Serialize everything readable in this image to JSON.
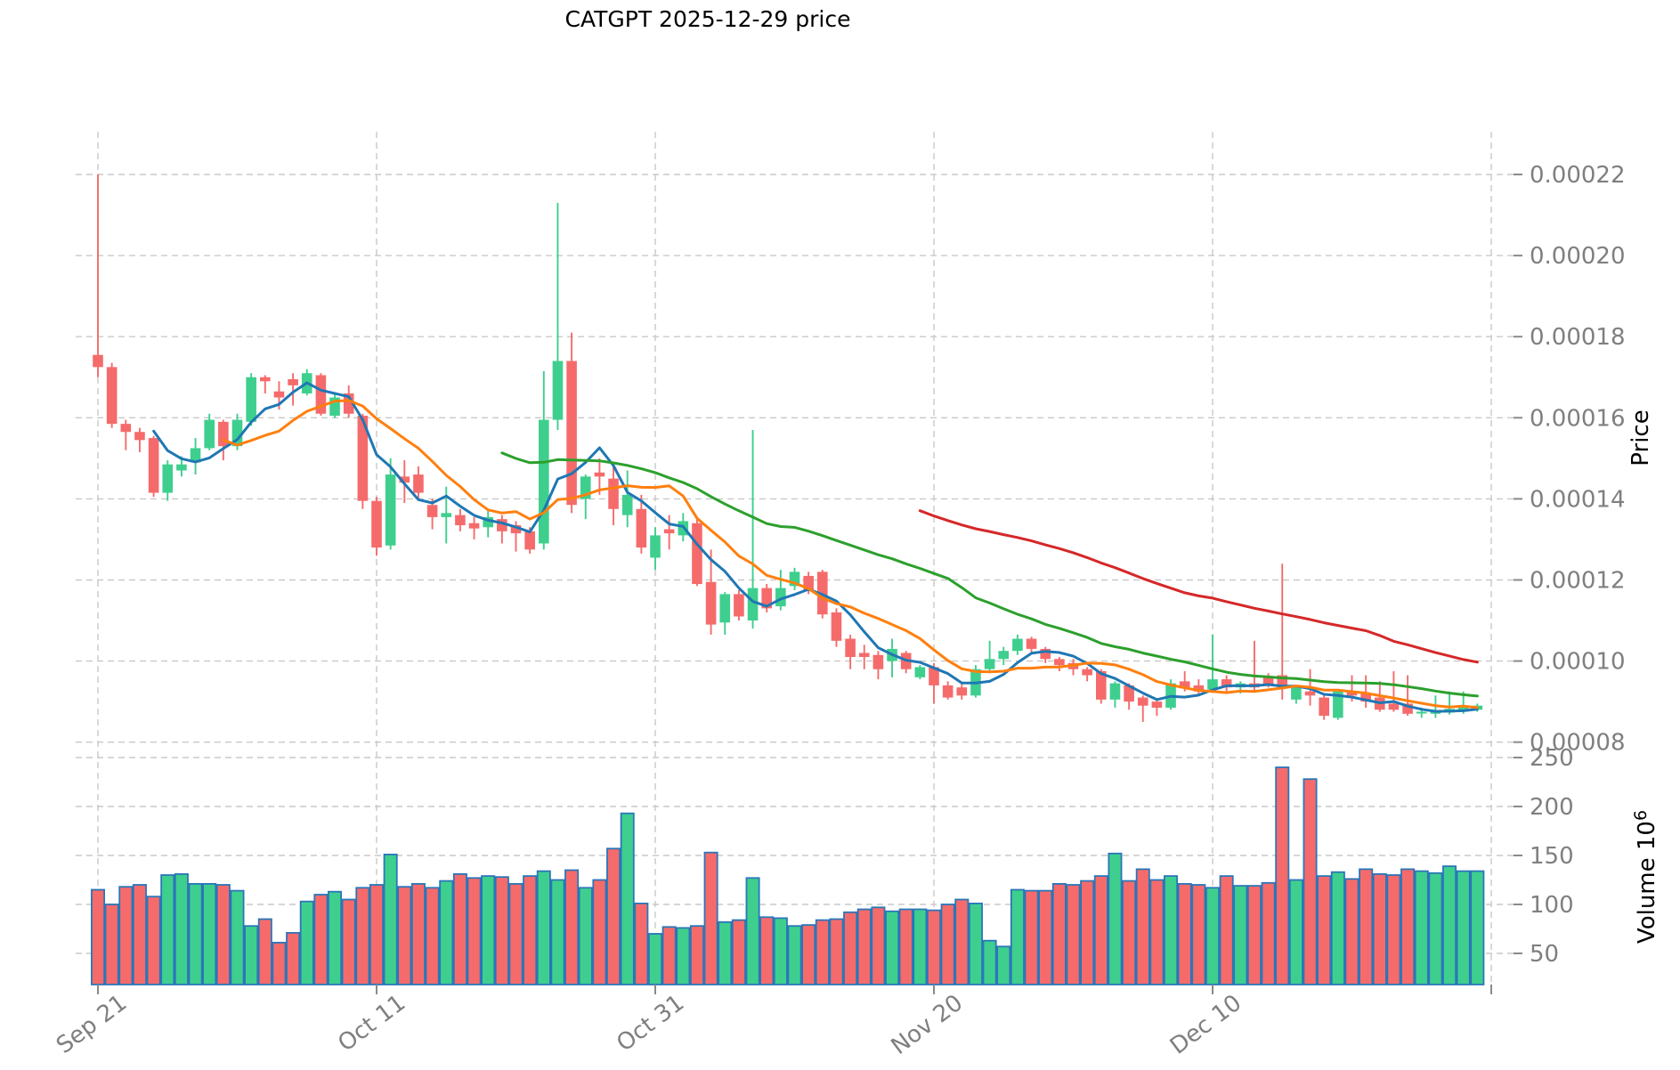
{
  "title": "CATGPT  2025-12-29  price",
  "chart_data": {
    "type": "candlestick",
    "title": "CATGPT  2025-12-29  price",
    "x_axis": {
      "tick_labels": [
        {
          "index": 0,
          "label": "Sep 21"
        },
        {
          "index": 20,
          "label": "Oct 11"
        },
        {
          "index": 40,
          "label": "Oct 31"
        },
        {
          "index": 60,
          "label": "Nov 20"
        },
        {
          "index": 80,
          "label": "Dec 10"
        },
        {
          "index": 100,
          "label": ""
        }
      ],
      "num_days": 100
    },
    "price_axis": {
      "label": "Price",
      "ticks": [
        "0.00022",
        "0.00020",
        "0.00018",
        "0.00016",
        "0.00014",
        "0.00012",
        "0.00010",
        "0.00008"
      ],
      "tick_values_micro": [
        220,
        200,
        180,
        160,
        140,
        120,
        100,
        80
      ],
      "ylim_micro": [
        78.4,
        230.5
      ]
    },
    "volume_axis": {
      "label": "Volume",
      "unit_base": "10",
      "unit_exponent": "6",
      "ticks": [
        "250",
        "200",
        "150",
        "100",
        "50"
      ],
      "tick_values": [
        250,
        200,
        150,
        100,
        50
      ],
      "ylim": [
        18,
        255
      ]
    },
    "price_scale": 1e-06,
    "volume_scale": 1000000.0,
    "ohlc_micro": [
      [
        175.5,
        220,
        170,
        172.5
      ],
      [
        172.5,
        173.5,
        157.5,
        158.5
      ],
      [
        158.5,
        159.5,
        152,
        156.5
      ],
      [
        156.5,
        157.5,
        151.5,
        154.5
      ],
      [
        155,
        155.5,
        140.5,
        141.5
      ],
      [
        141.5,
        149.5,
        139.5,
        148.5
      ],
      [
        147,
        150.5,
        145.5,
        148.5
      ],
      [
        149,
        155,
        146,
        152.5
      ],
      [
        152.5,
        161,
        152,
        159.5
      ],
      [
        159,
        159.5,
        149.5,
        153
      ],
      [
        153,
        161,
        152,
        159.5
      ],
      [
        159,
        171,
        158,
        170
      ],
      [
        170,
        170.5,
        166,
        169
      ],
      [
        166.5,
        169,
        162,
        165
      ],
      [
        169.5,
        171,
        163,
        168
      ],
      [
        166,
        172,
        165.5,
        171
      ],
      [
        170.5,
        171,
        160.5,
        161
      ],
      [
        160.5,
        166,
        160,
        165
      ],
      [
        166,
        168,
        160,
        161
      ],
      [
        160.5,
        161,
        137.5,
        139.5
      ],
      [
        139.5,
        140.5,
        126,
        128
      ],
      [
        128.5,
        150,
        127.5,
        146
      ],
      [
        145.5,
        149.5,
        139,
        144
      ],
      [
        146,
        148,
        140,
        141.5
      ],
      [
        138.5,
        140,
        132.5,
        135.5
      ],
      [
        135.5,
        143,
        129,
        136.5
      ],
      [
        136,
        137.5,
        132,
        133.5
      ],
      [
        134,
        135.5,
        130,
        132.7
      ],
      [
        133,
        137,
        130.5,
        135.5
      ],
      [
        135,
        136,
        129,
        132
      ],
      [
        133.5,
        134.5,
        127,
        131.5
      ],
      [
        132,
        133,
        126.5,
        127.5
      ],
      [
        129,
        171.5,
        127.5,
        159.5
      ],
      [
        159.5,
        213,
        157,
        174
      ],
      [
        174,
        181,
        136.5,
        138.5
      ],
      [
        140,
        146,
        135,
        145.5
      ],
      [
        146.5,
        150,
        141,
        145.5
      ],
      [
        145,
        148,
        133.5,
        137.5
      ],
      [
        136,
        147,
        133,
        141
      ],
      [
        137.5,
        141,
        126.5,
        128
      ],
      [
        125.5,
        133,
        122.5,
        131
      ],
      [
        132.5,
        136,
        127.5,
        131.5
      ],
      [
        131,
        136.5,
        129.5,
        134.5
      ],
      [
        134,
        135,
        118.5,
        119
      ],
      [
        119.5,
        127.5,
        106.5,
        109
      ],
      [
        109.5,
        117,
        106.5,
        116.5
      ],
      [
        116.5,
        117.5,
        110,
        111
      ],
      [
        110,
        157,
        108,
        118
      ],
      [
        118,
        119,
        112,
        113
      ],
      [
        113.5,
        122.5,
        112.5,
        118
      ],
      [
        118.5,
        123,
        117.5,
        122
      ],
      [
        121,
        122,
        116.5,
        117.5
      ],
      [
        122,
        122.5,
        110.5,
        111.5
      ],
      [
        112,
        113,
        103.5,
        105
      ],
      [
        105.5,
        106.5,
        98,
        101
      ],
      [
        102,
        104,
        98,
        101
      ],
      [
        101.5,
        102.5,
        95.5,
        98
      ],
      [
        100,
        105.5,
        96,
        103
      ],
      [
        102,
        102.5,
        97,
        98
      ],
      [
        96,
        99,
        95.5,
        98.5
      ],
      [
        98.5,
        99.5,
        89.5,
        94
      ],
      [
        94,
        95,
        90.5,
        91
      ],
      [
        93.5,
        94.5,
        90.5,
        91.5
      ],
      [
        91.5,
        99,
        91,
        98
      ],
      [
        98,
        105,
        97.5,
        100.5
      ],
      [
        100.5,
        103.5,
        99,
        102.5
      ],
      [
        102.5,
        106.5,
        101.5,
        105.5
      ],
      [
        105.5,
        106,
        102,
        103
      ],
      [
        103,
        103.5,
        99.5,
        100.5
      ],
      [
        100.5,
        101,
        97.5,
        99
      ],
      [
        99.5,
        100.5,
        96.5,
        98
      ],
      [
        98,
        98.5,
        95,
        96.5
      ],
      [
        97.5,
        98,
        89.5,
        90.5
      ],
      [
        90.5,
        95,
        88.5,
        94.5
      ],
      [
        94,
        94.5,
        88,
        90
      ],
      [
        91,
        91.5,
        85,
        89
      ],
      [
        90,
        90.5,
        86.5,
        88.5
      ],
      [
        88.5,
        95.5,
        88,
        94.5
      ],
      [
        95,
        97.5,
        92.5,
        93.5
      ],
      [
        94,
        95.5,
        91.5,
        92.5
      ],
      [
        93,
        106.5,
        92.5,
        95.5
      ],
      [
        95.5,
        96.5,
        92.5,
        93.5
      ],
      [
        93.5,
        95,
        92,
        94.5
      ],
      [
        94.5,
        105,
        92.5,
        93.5
      ],
      [
        96,
        97,
        93.5,
        94
      ],
      [
        96.5,
        124,
        90.5,
        93.5
      ],
      [
        90.5,
        94,
        89.5,
        93.5
      ],
      [
        92.5,
        98,
        89,
        91.5
      ],
      [
        91,
        92,
        85.5,
        86.5
      ],
      [
        86,
        93,
        85.5,
        92.5
      ],
      [
        92.5,
        96.5,
        90,
        91.5
      ],
      [
        92,
        96.5,
        88.5,
        90
      ],
      [
        91,
        95,
        87.5,
        88
      ],
      [
        89.5,
        97.5,
        87.5,
        88
      ],
      [
        89.5,
        96.5,
        86.5,
        87
      ],
      [
        87.2,
        88.5,
        86,
        87.5
      ],
      [
        87,
        91.5,
        86,
        87.5
      ],
      [
        87.3,
        92.5,
        86.8,
        88.2
      ],
      [
        87.5,
        92.5,
        87,
        88.5
      ],
      [
        88,
        89.5,
        87.5,
        89
      ]
    ],
    "volume_millions": [
      115,
      100,
      118,
      120,
      108,
      130,
      131,
      121,
      121,
      120,
      114,
      78,
      85,
      61,
      71,
      103,
      110,
      113,
      105,
      117,
      120,
      151,
      118,
      121,
      117,
      124,
      131,
      127,
      129,
      128,
      121,
      129,
      134,
      125,
      135,
      117,
      125,
      157,
      193,
      101,
      70,
      77,
      76,
      78,
      153,
      82,
      84,
      127,
      87,
      86,
      78,
      79,
      84,
      85,
      92,
      95,
      97,
      93,
      95,
      95,
      94,
      100,
      105,
      101,
      63,
      57,
      115,
      114,
      114,
      121,
      120,
      124,
      129,
      152,
      124,
      136,
      125,
      129,
      121,
      120,
      117,
      129,
      119,
      119,
      122,
      240,
      125,
      228,
      129,
      133,
      126,
      136,
      131,
      130,
      136,
      134,
      132,
      139,
      134,
      134
    ],
    "moving_averages": [
      {
        "window": 5,
        "color": "#1f77b4"
      },
      {
        "window": 10,
        "color": "#ff7f0e"
      },
      {
        "window": 30,
        "color": "#2ca02c"
      },
      {
        "window": 60,
        "color": "#d62728"
      }
    ],
    "colors": {
      "up": "#3ecf8e",
      "down": "#f56b6b",
      "volume_edge": "#2b76b9",
      "grid": "#c9c9c9",
      "tick_text": "#7f7f7f",
      "title_text": "#000000"
    },
    "grid": true,
    "legend": "none"
  }
}
